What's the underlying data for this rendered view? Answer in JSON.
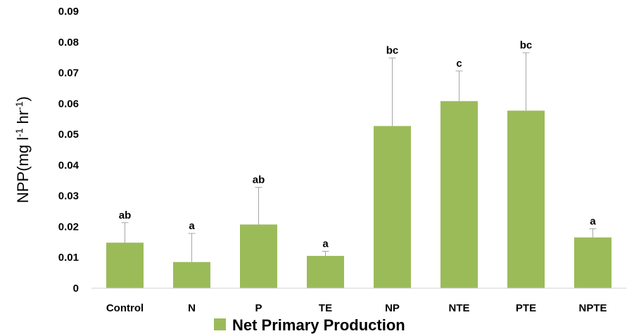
{
  "chart_data": {
    "type": "bar",
    "categories": [
      "Control",
      "N",
      "P",
      "TE",
      "NP",
      "NTE",
      "PTE",
      "NPTE"
    ],
    "series": [
      {
        "name": "Net Primary Production",
        "values": [
          0.0148,
          0.0085,
          0.0207,
          0.0105,
          0.0527,
          0.0608,
          0.0577,
          0.0165
        ],
        "error_upper": [
          0.0213,
          0.0178,
          0.0328,
          0.012,
          0.0748,
          0.0706,
          0.0765,
          0.0193
        ],
        "significance": [
          "ab",
          "a",
          "ab",
          "a",
          "bc",
          "c",
          "bc",
          "a"
        ]
      }
    ],
    "ylabel": {
      "base": "NPP(mg l",
      "exp1": "-1",
      "mid": " hr",
      "exp2": "-1",
      "end": ")"
    },
    "ylim": [
      0,
      0.09
    ],
    "yticks": [
      "0",
      "0.01",
      "0.02",
      "0.03",
      "0.04",
      "0.05",
      "0.06",
      "0.07",
      "0.08",
      "0.09"
    ],
    "grid": false,
    "legend_position": "bottom",
    "colors": {
      "bar": "#9bbb59",
      "error": "#a6a6a6",
      "axis": "#d0d0d0"
    }
  }
}
